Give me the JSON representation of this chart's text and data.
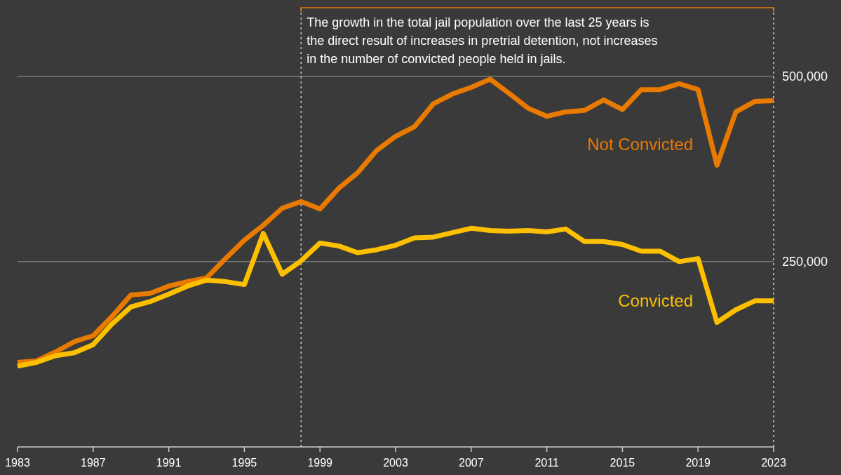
{
  "chart_data": {
    "type": "line",
    "x": [
      1983,
      1984,
      1985,
      1986,
      1987,
      1988,
      1989,
      1990,
      1991,
      1992,
      1993,
      1994,
      1995,
      1996,
      1997,
      1998,
      1999,
      2000,
      2001,
      2002,
      2003,
      2004,
      2005,
      2006,
      2007,
      2008,
      2009,
      2010,
      2011,
      2012,
      2013,
      2014,
      2015,
      2016,
      2017,
      2018,
      2019,
      2020,
      2021,
      2022,
      2023
    ],
    "series": [
      {
        "name": "Not Convicted",
        "color": "#e87a00",
        "values": [
          114000,
          116000,
          128000,
          142000,
          150000,
          176000,
          205000,
          207000,
          217000,
          223000,
          228000,
          254000,
          279000,
          299000,
          322000,
          331000,
          321000,
          349000,
          370000,
          400000,
          419000,
          432000,
          463000,
          476000,
          485000,
          496000,
          477000,
          457000,
          446000,
          452000,
          454000,
          468000,
          455000,
          482000,
          482000,
          490000,
          482000,
          380000,
          452000,
          466000,
          467000
        ]
      },
      {
        "name": "Convicted",
        "color": "#fcc000",
        "values": [
          109000,
          114000,
          123000,
          127000,
          138000,
          166000,
          189000,
          196000,
          206000,
          217000,
          225000,
          223000,
          219000,
          288000,
          233000,
          251000,
          275000,
          271000,
          262000,
          266000,
          272000,
          282000,
          283000,
          289000,
          295000,
          292000,
          291000,
          292000,
          290000,
          294000,
          277000,
          277000,
          273000,
          264000,
          264000,
          250000,
          254000,
          168000,
          185000,
          197000,
          197000
        ]
      }
    ],
    "xlim": [
      1983,
      2023
    ],
    "xticks": [
      1983,
      1987,
      1991,
      1995,
      1999,
      2003,
      2007,
      2011,
      2015,
      2019,
      2023
    ],
    "ylim": [
      0,
      600000
    ],
    "yticks": [
      {
        "value": 250000,
        "label": "250,000"
      },
      {
        "value": 500000,
        "label": "500,000"
      }
    ],
    "grid": "y",
    "line_style": "solid",
    "legend": false,
    "ref_lines": [
      {
        "axis": "x",
        "value": 1998,
        "label": null,
        "line_style": "dotted",
        "color": "#cccccc"
      },
      {
        "axis": "x",
        "value": 2023,
        "label": null,
        "line_style": "dotted",
        "color": "#cccccc"
      }
    ],
    "annotations": [
      "The growth in the total jail population over the last 25 years is the direct result of increases in pretrial detention, not increases in the number of convicted people held in jails."
    ]
  }
}
